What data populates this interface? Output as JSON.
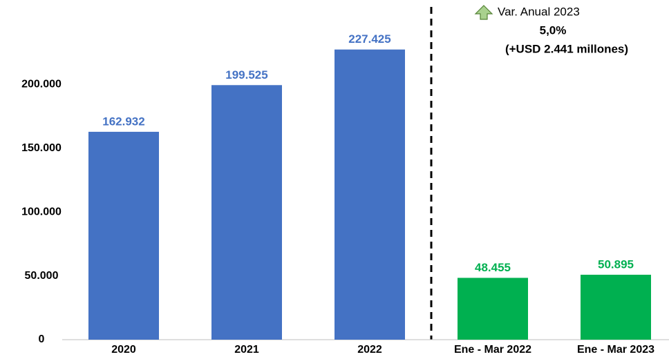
{
  "chart_data": {
    "type": "bar",
    "categories": [
      "2020",
      "2021",
      "2022",
      "Ene - Mar 2022",
      "Ene - Mar 2023"
    ],
    "values": [
      162932,
      199525,
      227425,
      48455,
      50895
    ],
    "value_labels": [
      "162.932",
      "199.525",
      "227.425",
      "48.455",
      "50.895"
    ],
    "colors": [
      "#4472c4",
      "#4472c4",
      "#4472c4",
      "#00b050",
      "#00b050"
    ],
    "ylim": [
      0,
      250000
    ],
    "yticks": [
      0,
      {
        "value": 50000,
        "label": "50.000"
      },
      {
        "value": 100000,
        "label": "100.000"
      },
      {
        "value": 150000,
        "label": "150.000"
      },
      {
        "value": 200000,
        "label": "200.000"
      }
    ],
    "annotations": [
      "Var. Anual 2023",
      "5,0%",
      "(+USD 2.441 millones)"
    ]
  }
}
